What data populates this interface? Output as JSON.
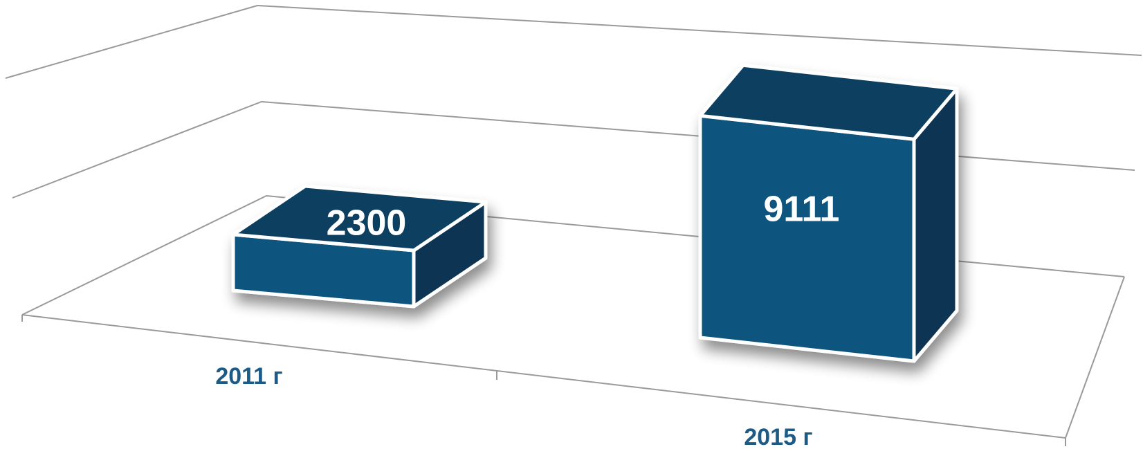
{
  "chart_data": {
    "type": "bar",
    "categories": [
      "2011 г",
      "2015 г"
    ],
    "values": [
      2300,
      9111
    ],
    "ylim": [
      0,
      10000
    ],
    "grid": true,
    "legend": "none",
    "style": "3d-column"
  },
  "colors": {
    "bar_front": "#10557f",
    "bar_top": "#0b3f60",
    "bar_side": "#093452",
    "label": "#ffffff",
    "category_label": "#1b5b86",
    "grid": "#9a9a9a"
  }
}
